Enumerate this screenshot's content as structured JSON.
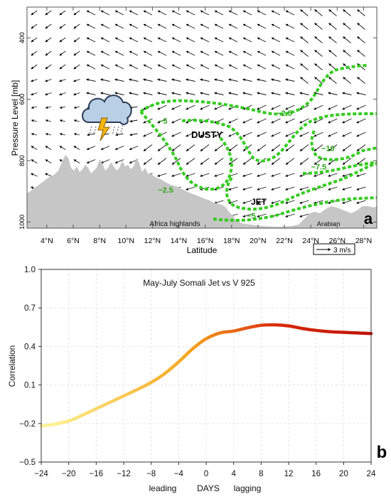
{
  "panels": {
    "a": {
      "letter": "a"
    },
    "b": {
      "letter": "b"
    }
  },
  "chart_data": [
    {
      "panel": "a",
      "type": "vector-contour",
      "title": "",
      "xlabel": "Latitude",
      "ylabel": "Pressure Level [mb]",
      "xlim": [
        2.5,
        29
      ],
      "ylim": [
        1020,
        300
      ],
      "x_ticks": [
        "4°N",
        "6°N",
        "8°N",
        "10°N",
        "12°N",
        "14°N",
        "16°N",
        "18°N",
        "20°N",
        "22°N",
        "24°N",
        "26°N",
        "28°N"
      ],
      "x_tick_values": [
        4,
        6,
        8,
        10,
        12,
        14,
        16,
        18,
        20,
        22,
        24,
        26,
        28
      ],
      "y_ticks": [
        "400",
        "600",
        "800",
        "1000"
      ],
      "y_tick_values": [
        400,
        600,
        800,
        1000
      ],
      "contour_labels": [
        {
          "text": "−5",
          "lat": 12.8,
          "p": 670
        },
        {
          "text": "−2.5",
          "lat": 22.0,
          "p": 645
        },
        {
          "text": "−10",
          "lat": 25.3,
          "p": 760
        },
        {
          "text": "−7.5",
          "lat": 24.6,
          "p": 820
        },
        {
          "text": "−2.5",
          "lat": 13.0,
          "p": 895
        },
        {
          "text": "−5",
          "lat": 19.5,
          "p": 980
        }
      ],
      "annotations": [
        "DUSTY",
        "JET",
        "Africa highlands",
        "Arabian"
      ],
      "reference_vector": "3 m/s",
      "contour_color": "#33cc1f",
      "terrain_color": "#c6c6c6",
      "icons": [
        "thunderstorm-cloud-icon"
      ]
    },
    {
      "panel": "b",
      "type": "line",
      "title": "May-July Somali Jet vs V 925",
      "xlabel": "DAYS",
      "xlabel_left": "leading",
      "xlabel_right": "lagging",
      "ylabel": "Correlation",
      "xlim": [
        -24,
        24
      ],
      "ylim": [
        -0.5,
        1.0
      ],
      "x_ticks": [
        -24,
        -20,
        -16,
        -12,
        -8,
        -4,
        0,
        4,
        8,
        12,
        16,
        20,
        24
      ],
      "x_tick_labels": [
        "−24",
        "−20",
        "−16",
        "−12",
        "−8",
        "−4",
        "0",
        "4",
        "8",
        "12",
        "16",
        "20",
        "24"
      ],
      "y_ticks": [
        -0.5,
        -0.2,
        0.1,
        0.4,
        0.7,
        1.0
      ],
      "y_tick_labels": [
        "−0.5",
        "−0.2",
        "0.1",
        "0.4",
        "0.7",
        "1.0"
      ],
      "grid": true,
      "series": [
        {
          "x": [
            -24,
            -22,
            -20,
            -18,
            -16,
            -14,
            -12,
            -10,
            -8,
            -6,
            -4,
            -2,
            0,
            2,
            4,
            6,
            8,
            10,
            12,
            14,
            16,
            18,
            20,
            22,
            24
          ],
          "values": [
            -0.22,
            -0.205,
            -0.18,
            -0.135,
            -0.085,
            -0.035,
            0.015,
            0.065,
            0.12,
            0.19,
            0.28,
            0.38,
            0.46,
            0.505,
            0.52,
            0.545,
            0.565,
            0.568,
            0.56,
            0.54,
            0.525,
            0.515,
            0.51,
            0.505,
            0.5
          ]
        }
      ],
      "line_colors": [
        "#fff59a",
        "#f5a51e",
        "#d8290b",
        "#bf1306"
      ]
    }
  ]
}
